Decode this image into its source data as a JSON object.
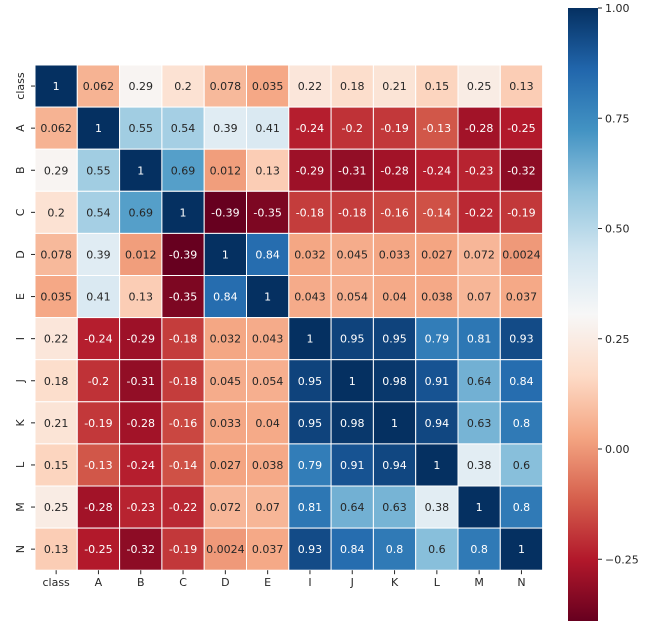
{
  "chart_data": {
    "type": "heatmap",
    "title": "",
    "xlabel": "",
    "ylabel": "",
    "x_labels": [
      "class",
      "A",
      "B",
      "C",
      "D",
      "E",
      "I",
      "J",
      "K",
      "L",
      "M",
      "N"
    ],
    "y_labels": [
      "class",
      "A",
      "B",
      "C",
      "D",
      "E",
      "I",
      "J",
      "K",
      "L",
      "M",
      "N"
    ],
    "values": [
      [
        1,
        0.062,
        0.29,
        0.2,
        0.078,
        0.035,
        0.22,
        0.18,
        0.21,
        0.15,
        0.25,
        0.13
      ],
      [
        0.062,
        1,
        0.55,
        0.54,
        0.39,
        0.41,
        -0.24,
        -0.2,
        -0.19,
        -0.13,
        -0.28,
        -0.25
      ],
      [
        0.29,
        0.55,
        1,
        0.69,
        0.012,
        0.13,
        -0.29,
        -0.31,
        -0.28,
        -0.24,
        -0.23,
        -0.32
      ],
      [
        0.2,
        0.54,
        0.69,
        1,
        -0.39,
        -0.35,
        -0.18,
        -0.18,
        -0.16,
        -0.14,
        -0.22,
        -0.19
      ],
      [
        0.078,
        0.39,
        0.012,
        -0.39,
        1,
        0.84,
        0.032,
        0.045,
        0.033,
        0.027,
        0.072,
        0.0024
      ],
      [
        0.035,
        0.41,
        0.13,
        -0.35,
        0.84,
        1,
        0.043,
        0.054,
        0.04,
        0.038,
        0.07,
        0.037
      ],
      [
        0.22,
        -0.24,
        -0.29,
        -0.18,
        0.032,
        0.043,
        1,
        0.95,
        0.95,
        0.79,
        0.81,
        0.93
      ],
      [
        0.18,
        -0.2,
        -0.31,
        -0.18,
        0.045,
        0.054,
        0.95,
        1,
        0.98,
        0.91,
        0.64,
        0.84
      ],
      [
        0.21,
        -0.19,
        -0.28,
        -0.16,
        0.033,
        0.04,
        0.95,
        0.98,
        1,
        0.94,
        0.63,
        0.8
      ],
      [
        0.15,
        -0.13,
        -0.24,
        -0.14,
        0.027,
        0.038,
        0.79,
        0.91,
        0.94,
        1,
        0.38,
        0.6
      ],
      [
        0.25,
        -0.28,
        -0.23,
        -0.22,
        0.072,
        0.07,
        0.81,
        0.64,
        0.63,
        0.38,
        1,
        0.8
      ],
      [
        0.13,
        -0.25,
        -0.32,
        -0.19,
        0.0024,
        0.037,
        0.93,
        0.84,
        0.8,
        0.6,
        0.8,
        1
      ]
    ],
    "colormap": "RdBu",
    "vmin": -0.39,
    "vmax": 1.0,
    "colorbar": {
      "ticks": [
        1.0,
        0.75,
        0.5,
        0.25,
        0.0,
        -0.25
      ],
      "tick_labels": [
        "1.00",
        "0.75",
        "0.50",
        "0.25",
        "0.00",
        "−0.25"
      ]
    },
    "grid": false,
    "annotations": true,
    "cell_border_color": "#ffffff"
  }
}
